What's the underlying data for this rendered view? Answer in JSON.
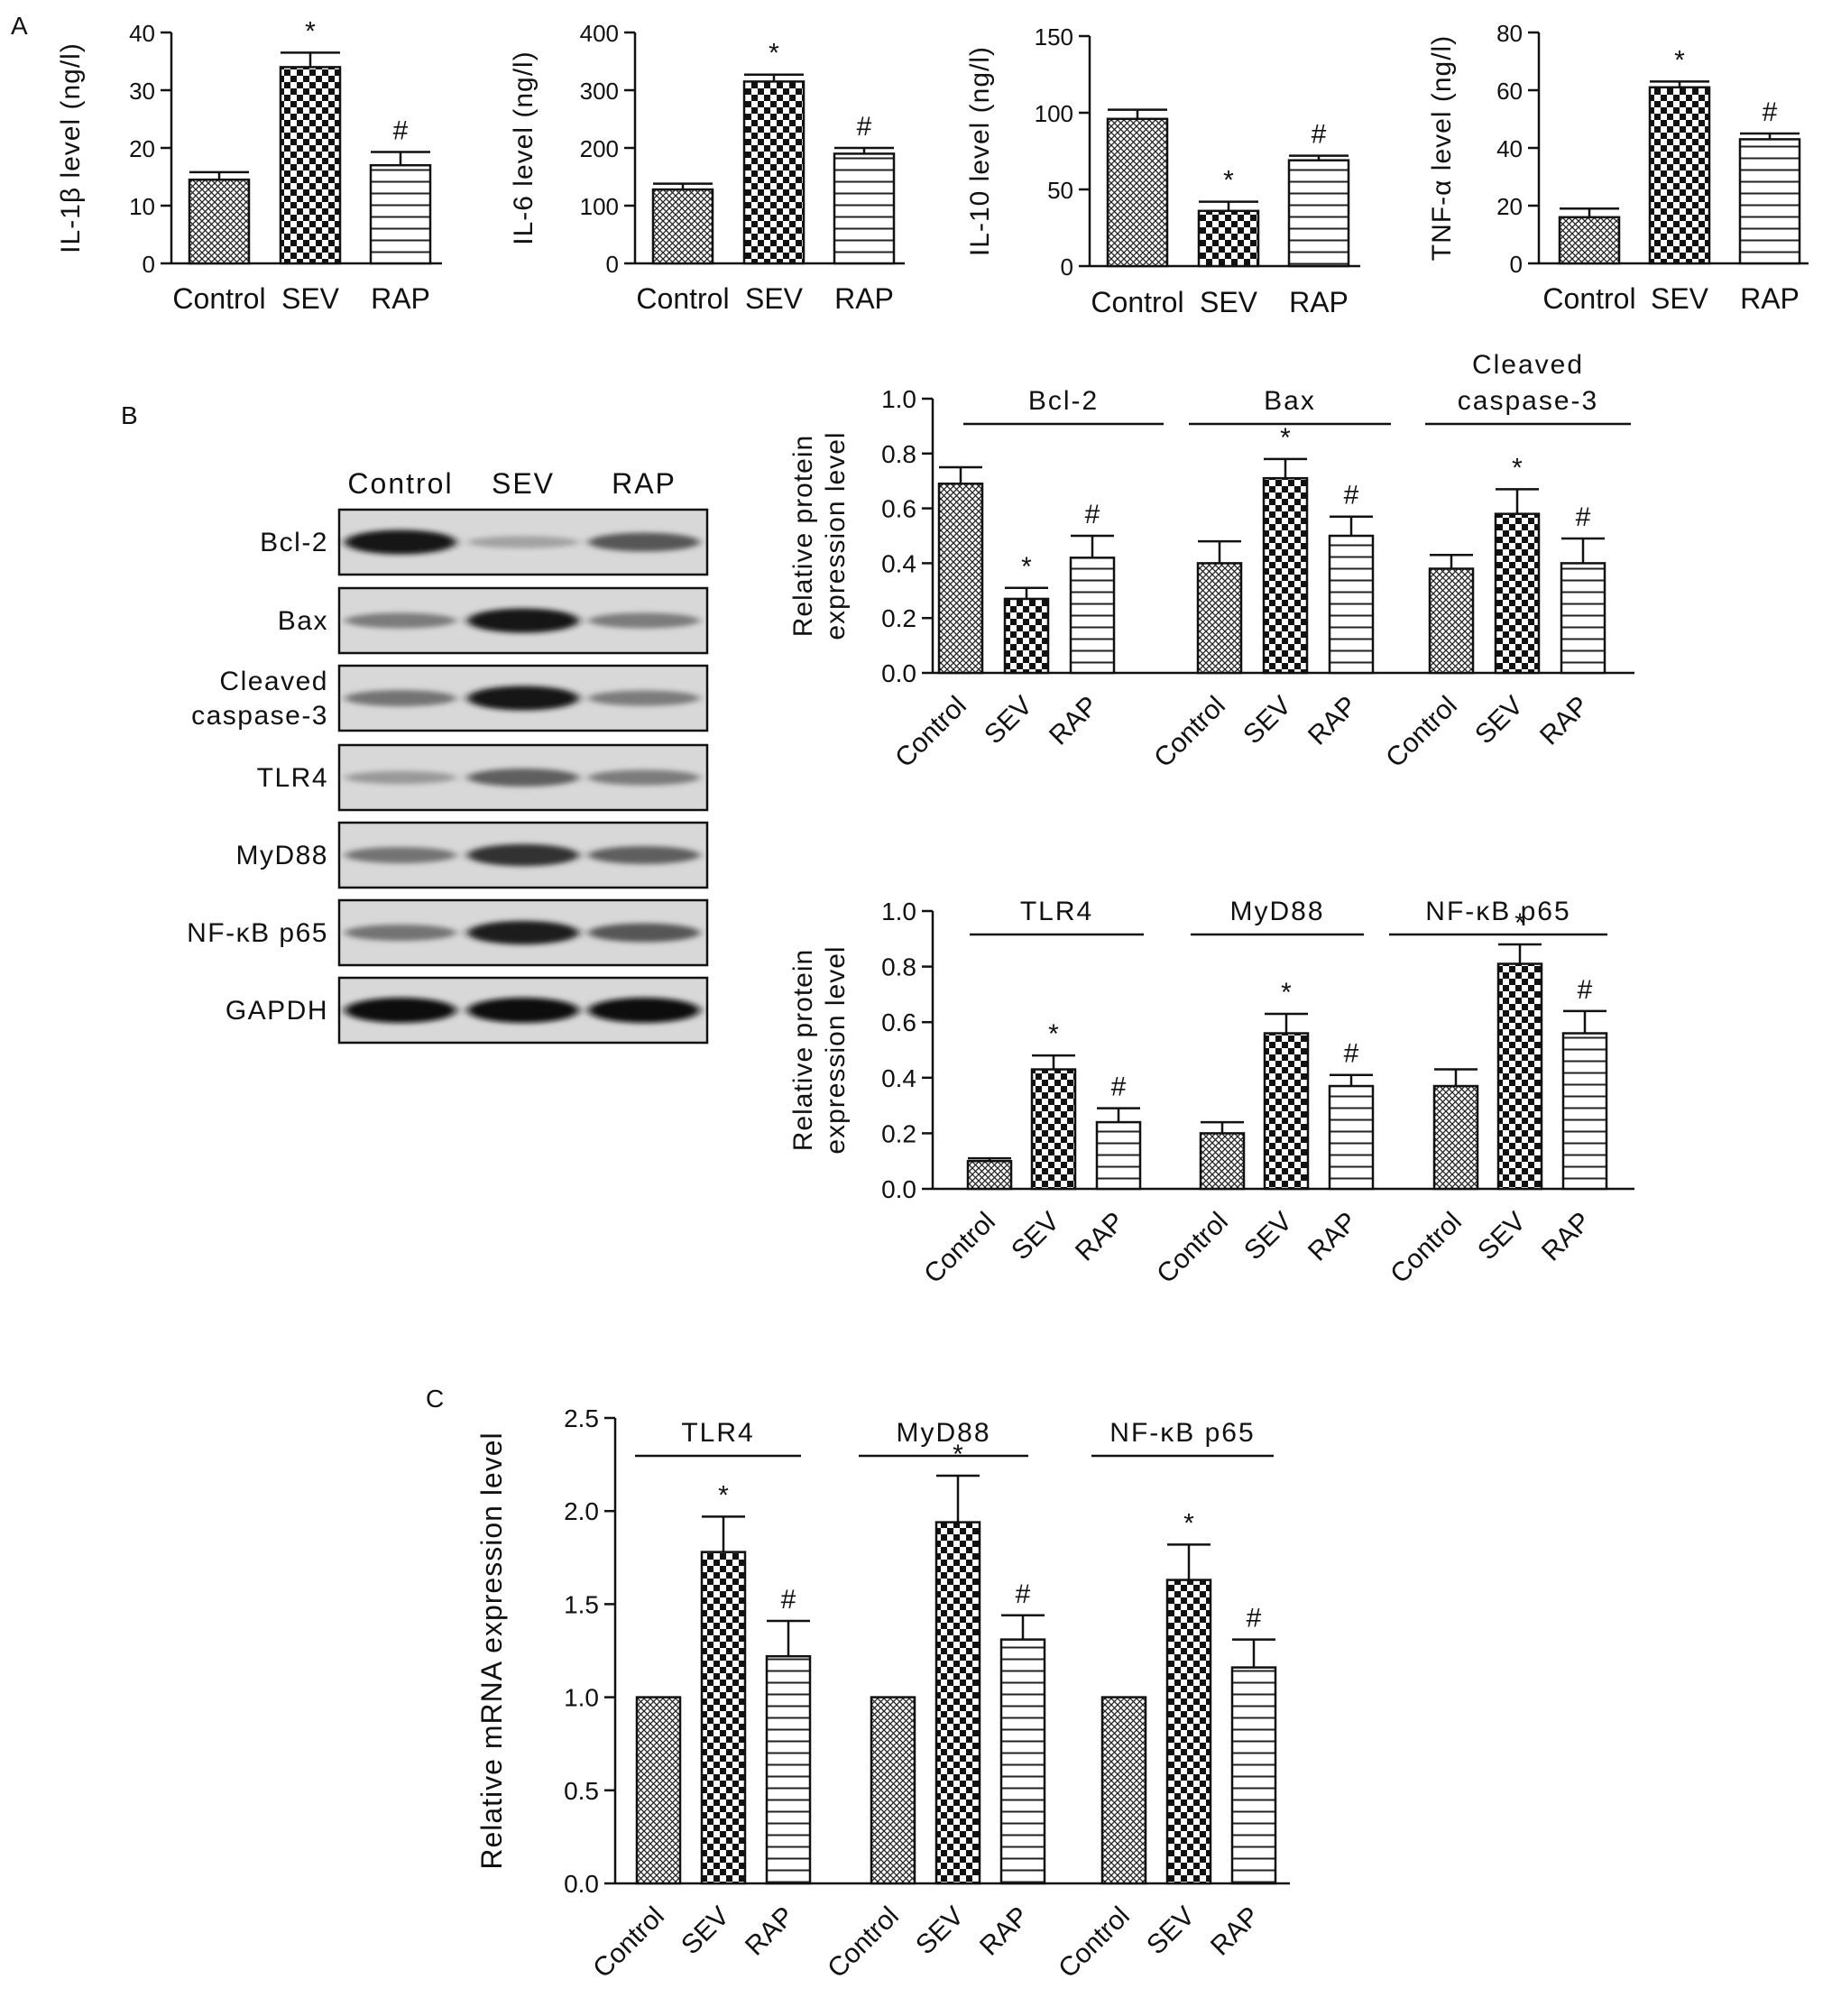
{
  "panel_labels": {
    "a": "A",
    "b": "B",
    "c": "C"
  },
  "colors": {
    "ink": "#111111",
    "background": "#ffffff"
  },
  "bar_patterns": {
    "Control": "fine-crosshatch",
    "SEV": "checkerboard",
    "RAP": "horizontal-lines"
  },
  "blot": {
    "lanes": [
      "Control",
      "SEV",
      "RAP"
    ],
    "rows": [
      {
        "label": "Bcl-2",
        "intensity": [
          0.95,
          0.2,
          0.6
        ]
      },
      {
        "label": "Bax",
        "intensity": [
          0.4,
          0.95,
          0.4
        ]
      },
      {
        "label": "Cleaved\ncaspase-3",
        "intensity": [
          0.45,
          0.95,
          0.4
        ]
      },
      {
        "label": "TLR4",
        "intensity": [
          0.25,
          0.55,
          0.4
        ]
      },
      {
        "label": "MyD88",
        "intensity": [
          0.45,
          0.8,
          0.55
        ]
      },
      {
        "label": "NF-κB p65",
        "intensity": [
          0.45,
          0.9,
          0.6
        ]
      },
      {
        "label": "GAPDH",
        "intensity": [
          1.0,
          1.0,
          1.0
        ]
      }
    ]
  },
  "chart_data": [
    {
      "id": "A1",
      "type": "bar",
      "ylabel": "IL-1β level (ng/l)",
      "ylim": [
        0,
        40
      ],
      "yticks": [
        0,
        10,
        20,
        30,
        40
      ],
      "groups": [
        {
          "title": "",
          "categories": [
            "Control",
            "SEV",
            "RAP"
          ],
          "values": [
            14.5,
            34,
            17
          ],
          "errors": [
            1.3,
            2.5,
            2.3
          ],
          "marks": [
            "",
            "*",
            "#"
          ]
        }
      ]
    },
    {
      "id": "A2",
      "type": "bar",
      "ylabel": "IL-6 level (ng/l)",
      "ylim": [
        0,
        400
      ],
      "yticks": [
        0,
        100,
        200,
        300,
        400
      ],
      "groups": [
        {
          "title": "",
          "categories": [
            "Control",
            "SEV",
            "RAP"
          ],
          "values": [
            128,
            315,
            190
          ],
          "errors": [
            10,
            12,
            10
          ],
          "marks": [
            "",
            "*",
            "#"
          ]
        }
      ]
    },
    {
      "id": "A3",
      "type": "bar",
      "ylabel": "IL-10 level (ng/l)",
      "ylim": [
        0,
        150
      ],
      "yticks": [
        0,
        50,
        100,
        150
      ],
      "groups": [
        {
          "title": "",
          "categories": [
            "Control",
            "SEV",
            "RAP"
          ],
          "values": [
            96,
            36,
            69
          ],
          "errors": [
            6,
            6,
            3
          ],
          "marks": [
            "",
            "*",
            "#"
          ]
        }
      ]
    },
    {
      "id": "A4",
      "type": "bar",
      "ylabel": "TNF-α level (ng/l)",
      "ylim": [
        0,
        80
      ],
      "yticks": [
        0,
        20,
        40,
        60,
        80
      ],
      "groups": [
        {
          "title": "",
          "categories": [
            "Control",
            "SEV",
            "RAP"
          ],
          "values": [
            16,
            61,
            43
          ],
          "errors": [
            3,
            2,
            2
          ],
          "marks": [
            "",
            "*",
            "#"
          ]
        }
      ]
    },
    {
      "id": "B1",
      "type": "bar",
      "ylabel": "Relative protein\nexpression level",
      "ylim": [
        0,
        1.0
      ],
      "yticks": [
        "0.0",
        "0.2",
        "0.4",
        "0.6",
        "0.8",
        "1.0"
      ],
      "groups": [
        {
          "title": "Bcl-2",
          "categories": [
            "Control",
            "SEV",
            "RAP"
          ],
          "values": [
            0.69,
            0.27,
            0.42
          ],
          "errors": [
            0.06,
            0.04,
            0.08
          ],
          "marks": [
            "",
            "*",
            "#"
          ]
        },
        {
          "title": "Bax",
          "categories": [
            "Control",
            "SEV",
            "RAP"
          ],
          "values": [
            0.4,
            0.71,
            0.5
          ],
          "errors": [
            0.08,
            0.07,
            0.07
          ],
          "marks": [
            "",
            "*",
            "#"
          ]
        },
        {
          "title": "Cleaved\ncaspase-3",
          "categories": [
            "Control",
            "SEV",
            "RAP"
          ],
          "values": [
            0.38,
            0.58,
            0.4
          ],
          "errors": [
            0.05,
            0.09,
            0.09
          ],
          "marks": [
            "",
            "*",
            "#"
          ]
        }
      ]
    },
    {
      "id": "B2",
      "type": "bar",
      "ylabel": "Relative protein\nexpression level",
      "ylim": [
        0,
        1.0
      ],
      "yticks": [
        "0.0",
        "0.2",
        "0.4",
        "0.6",
        "0.8",
        "1.0"
      ],
      "groups": [
        {
          "title": "TLR4",
          "categories": [
            "Control",
            "SEV",
            "RAP"
          ],
          "values": [
            0.1,
            0.43,
            0.24
          ],
          "errors": [
            0.01,
            0.05,
            0.05
          ],
          "marks": [
            "",
            "*",
            "#"
          ]
        },
        {
          "title": "MyD88",
          "categories": [
            "Control",
            "SEV",
            "RAP"
          ],
          "values": [
            0.2,
            0.56,
            0.37
          ],
          "errors": [
            0.04,
            0.07,
            0.04
          ],
          "marks": [
            "",
            "*",
            "#"
          ]
        },
        {
          "title": "NF-κB p65",
          "categories": [
            "Control",
            "SEV",
            "RAP"
          ],
          "values": [
            0.37,
            0.81,
            0.56
          ],
          "errors": [
            0.06,
            0.07,
            0.08
          ],
          "marks": [
            "",
            "*",
            "#"
          ]
        }
      ]
    },
    {
      "id": "C",
      "type": "bar",
      "ylabel": "Relative mRNA expression level",
      "ylim": [
        0,
        2.5
      ],
      "yticks": [
        "0.0",
        "0.5",
        "1.0",
        "1.5",
        "2.0",
        "2.5"
      ],
      "groups": [
        {
          "title": "TLR4",
          "categories": [
            "Control",
            "SEV",
            "RAP"
          ],
          "values": [
            1.0,
            1.78,
            1.22
          ],
          "errors": [
            0,
            0.19,
            0.19
          ],
          "marks": [
            "",
            "*",
            "#"
          ]
        },
        {
          "title": "MyD88",
          "categories": [
            "Control",
            "SEV",
            "RAP"
          ],
          "values": [
            1.0,
            1.94,
            1.31
          ],
          "errors": [
            0,
            0.25,
            0.13
          ],
          "marks": [
            "",
            "*",
            "#"
          ]
        },
        {
          "title": "NF-κB p65",
          "categories": [
            "Control",
            "SEV",
            "RAP"
          ],
          "values": [
            1.0,
            1.63,
            1.16
          ],
          "errors": [
            0,
            0.19,
            0.15
          ],
          "marks": [
            "",
            "*",
            "#"
          ]
        }
      ]
    }
  ]
}
